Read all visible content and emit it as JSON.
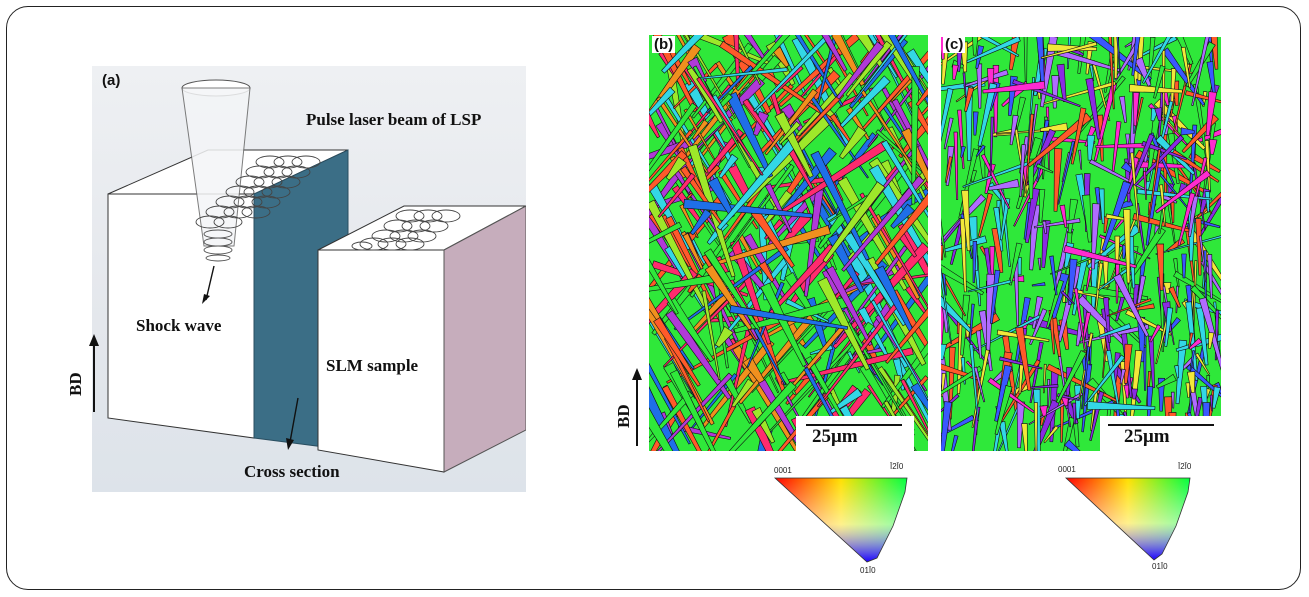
{
  "figure": {
    "panel_a": {
      "label": "(a)",
      "laser_label": "Pulse laser beam of LSP",
      "shock_label": "Shock wave",
      "sample_label": "SLM sample",
      "cross_label": "Cross section",
      "bd_label": "BD"
    },
    "panel_b": {
      "label": "(b)",
      "scale_label": "25μm",
      "bd_label": "BD",
      "ipf_top_left": "0001",
      "ipf_top_right": "Ī2Ī0",
      "ipf_bottom": "01Ī0"
    },
    "panel_c": {
      "label": "(c)",
      "scale_label": "25μm",
      "ipf_top_left": "0001",
      "ipf_top_right": "Ī2Ī0",
      "ipf_bottom": "01Ī0"
    },
    "colors": {
      "grain_palette_b": [
        "#2fe83a",
        "#ff5a2a",
        "#f0901e",
        "#33d7e6",
        "#9ee82a",
        "#1f6fe8",
        "#ff2b6e",
        "#b03ad8"
      ],
      "grain_palette_c": [
        "#2fe83a",
        "#8a2be2",
        "#ff2bd0",
        "#33d7e6",
        "#ff5a2a",
        "#3a58ff",
        "#f2e83a",
        "#b06cff"
      ],
      "cross_section": "#3b6e86",
      "right_face": "#c6adbc"
    }
  }
}
